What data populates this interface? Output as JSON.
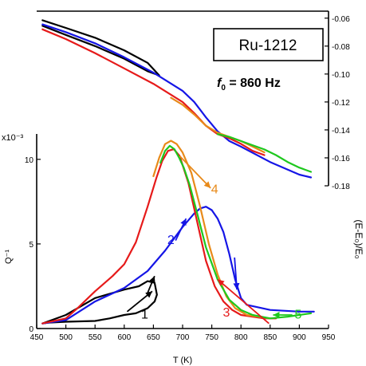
{
  "chart_data": {
    "type": "line",
    "title": "Ru-1212",
    "freq_label": {
      "symbol": "f",
      "subscript": "0",
      "rest": " = 860 Hz"
    },
    "xlabel": "T (K)",
    "xlim": [
      450,
      950
    ],
    "xticks": [
      "450",
      "500",
      "550",
      "600",
      "650",
      "700",
      "750",
      "800",
      "850",
      "900",
      "950"
    ],
    "left_axis": {
      "label": "Q⁻¹",
      "exponent_label": "x10⁻³",
      "ylim": [
        0,
        11.5
      ],
      "ticks": [
        "0",
        "5",
        "10"
      ]
    },
    "right_axis": {
      "label": "(E-E₀)/E₀",
      "ylim": [
        -0.18,
        -0.055
      ],
      "ticks": [
        "-0.06",
        "-0.08",
        "-0.10",
        "-0.12",
        "-0.14",
        "-0.16",
        "-0.18"
      ]
    },
    "colors": {
      "black": "#000000",
      "blue": "#1515e6",
      "orange": "#e88a1a",
      "red": "#e61a1a",
      "green": "#1ec81e"
    },
    "modulus_series": [
      {
        "color": "black",
        "x": [
          460,
          500,
          550,
          600,
          640,
          660,
          640,
          600,
          550,
          500,
          460
        ],
        "y": [
          -0.0615,
          -0.067,
          -0.074,
          -0.083,
          -0.092,
          -0.101,
          -0.098,
          -0.089,
          -0.08,
          -0.072,
          -0.0655
        ]
      },
      {
        "color": "blue",
        "x": [
          460,
          500,
          550,
          600,
          650,
          700,
          720,
          740,
          760,
          780,
          800,
          850,
          900,
          920
        ],
        "y": [
          -0.0645,
          -0.07,
          -0.078,
          -0.088,
          -0.099,
          -0.112,
          -0.12,
          -0.131,
          -0.141,
          -0.148,
          -0.152,
          -0.163,
          -0.172,
          -0.174
        ]
      },
      {
        "color": "red",
        "x": [
          460,
          500,
          550,
          600,
          650,
          700,
          720,
          740,
          760,
          780,
          800,
          820,
          840
        ],
        "y": [
          -0.068,
          -0.075,
          -0.085,
          -0.096,
          -0.107,
          -0.12,
          -0.128,
          -0.137,
          -0.143,
          -0.146,
          -0.15,
          -0.155,
          -0.158
        ]
      },
      {
        "color": "orange",
        "x": [
          680,
          700,
          720,
          740,
          760,
          780,
          800,
          820,
          840
        ],
        "y": [
          -0.117,
          -0.122,
          -0.129,
          -0.137,
          -0.142,
          -0.145,
          -0.148,
          -0.152,
          -0.156
        ]
      },
      {
        "color": "green",
        "x": [
          760,
          780,
          800,
          820,
          840,
          860,
          880,
          900,
          920
        ],
        "y": [
          -0.143,
          -0.145,
          -0.148,
          -0.151,
          -0.154,
          -0.158,
          -0.163,
          -0.167,
          -0.17
        ]
      }
    ],
    "dissipation_series": [
      {
        "color": "black",
        "x": [
          460,
          500,
          550,
          600,
          625,
          640,
          652,
          656,
          652,
          640,
          620,
          600,
          575,
          550,
          500,
          470,
          460
        ],
        "y": [
          0.3,
          0.8,
          1.8,
          2.3,
          2.5,
          2.8,
          2.7,
          2.0,
          1.6,
          1.2,
          0.9,
          0.8,
          0.6,
          0.45,
          0.4,
          0.35,
          0.3
        ]
      },
      {
        "color": "blue",
        "x": [
          460,
          500,
          550,
          600,
          640,
          670,
          700,
          720,
          730,
          740,
          750,
          760,
          770,
          780,
          790,
          800,
          810,
          850,
          900,
          925
        ],
        "y": [
          0.3,
          0.5,
          1.6,
          2.4,
          3.4,
          4.6,
          6.0,
          6.8,
          7.1,
          7.2,
          7.0,
          6.5,
          5.7,
          4.4,
          2.9,
          1.8,
          1.4,
          1.1,
          1.0,
          1.0
        ]
      },
      {
        "color": "red",
        "x": [
          460,
          500,
          520,
          550,
          580,
          600,
          620,
          640,
          655,
          665,
          675,
          685,
          695,
          710,
          725,
          740,
          755,
          770,
          785,
          800,
          820,
          840,
          860
        ],
        "y": [
          0.3,
          0.6,
          1.2,
          2.2,
          3.1,
          3.8,
          5.1,
          7.2,
          8.9,
          9.9,
          10.5,
          10.6,
          10.2,
          8.6,
          6.3,
          4.0,
          2.5,
          1.6,
          1.1,
          0.8,
          0.7,
          0.6,
          0.6
        ]
      },
      {
        "color": "orange",
        "x": [
          650,
          660,
          670,
          680,
          690,
          700,
          715,
          730,
          745,
          760,
          775,
          790,
          810,
          830,
          850
        ],
        "y": [
          9.0,
          10.1,
          10.9,
          11.1,
          10.9,
          10.4,
          9.2,
          7.2,
          5.0,
          3.2,
          1.9,
          1.2,
          0.8,
          0.7,
          0.6
        ]
      },
      {
        "color": "green",
        "x": [
          662,
          670,
          678,
          686,
          694,
          702,
          712,
          725,
          740,
          760,
          780,
          800,
          820,
          850,
          880,
          900,
          920
        ],
        "y": [
          9.8,
          10.5,
          10.8,
          10.6,
          10.1,
          9.5,
          8.5,
          6.8,
          4.8,
          2.9,
          1.7,
          1.1,
          0.8,
          0.6,
          0.7,
          0.8,
          0.9
        ]
      }
    ],
    "annotations": [
      {
        "text": "1",
        "color": "black",
        "x": 635,
        "y": 0.6
      },
      {
        "text": "2",
        "color": "blue",
        "x": 680,
        "y": 5.0
      },
      {
        "text": "3",
        "color": "red",
        "x": 775,
        "y": 0.7
      },
      {
        "text": "4",
        "color": "orange",
        "x": 755,
        "y": 8.0
      },
      {
        "text": "5",
        "color": "green",
        "x": 898,
        "y": 0.6
      }
    ],
    "arrows": [
      {
        "color": "black",
        "from": [
          605,
          1.0
        ],
        "to": [
          648,
          2.2
        ]
      },
      {
        "color": "black",
        "from": [
          640,
          2.1
        ],
        "to": [
          652,
          3.1
        ]
      },
      {
        "color": "blue",
        "from": [
          688,
          5.2
        ],
        "to": [
          706,
          6.5
        ]
      },
      {
        "color": "orange",
        "from": [
          695,
          10.2
        ],
        "to": [
          748,
          8.3
        ]
      },
      {
        "color": "blue",
        "from": [
          789,
          4.2
        ],
        "to": [
          793,
          2.3
        ]
      },
      {
        "color": "red",
        "from": [
          848,
          0.3
        ],
        "to": [
          760,
          2.9
        ]
      },
      {
        "color": "green",
        "from": [
          888,
          0.8
        ],
        "to": [
          855,
          0.8
        ]
      }
    ]
  }
}
